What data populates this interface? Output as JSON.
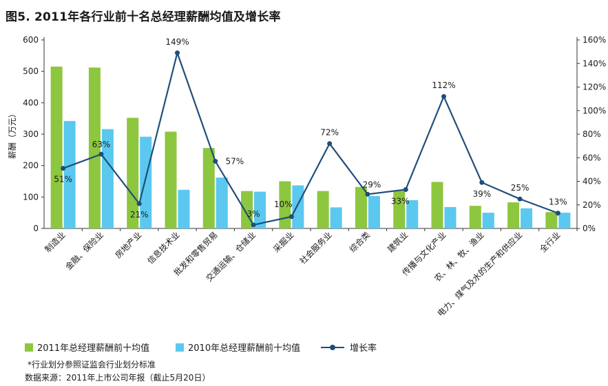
{
  "title": "图5. 2011年各行业前十名总经理薪酬均值及增长率",
  "colors": {
    "bar2011": "#8dc63f",
    "bar2010": "#5bc8f0",
    "line": "#1f4e79",
    "axis": "#333333"
  },
  "chart_data": {
    "type": "bar",
    "categories": [
      "制造业",
      "金融、保险业",
      "房地产业",
      "信息技术业",
      "批发和零售贸易",
      "交通运输、仓储业",
      "采掘业",
      "社会服务业",
      "综合类",
      "建筑业",
      "传播与文化产业",
      "农、林、牧、渔业",
      "电力、煤气及水的生产和供应业",
      "全行业"
    ],
    "series": [
      {
        "name": "2011年总经理薪酬前十均值",
        "axis": "left",
        "values": [
          515,
          512,
          352,
          308,
          256,
          119,
          150,
          119,
          132,
          120,
          148,
          72,
          83,
          52
        ]
      },
      {
        "name": "2010年总经理薪酬前十均值",
        "axis": "left",
        "values": [
          342,
          316,
          292,
          123,
          162,
          117,
          137,
          67,
          103,
          90,
          68,
          50,
          64,
          50
        ]
      },
      {
        "name": "增长率",
        "type": "line",
        "axis": "right",
        "values": [
          51,
          63,
          21,
          149,
          57,
          3,
          10,
          72,
          29,
          33,
          112,
          39,
          25,
          13
        ],
        "labels": [
          "51%",
          "63%",
          "21%",
          "149%",
          "57%",
          "3%",
          "10%",
          "72%",
          "29%",
          "33%",
          "112%",
          "39%",
          "25%",
          "13%"
        ]
      }
    ],
    "ylabel": "薪酬（万元）",
    "ylim": [
      0,
      600
    ],
    "yticks": [
      "0",
      "100",
      "200",
      "300",
      "400",
      "500",
      "600"
    ],
    "y2lim": [
      0,
      160
    ],
    "y2ticks": [
      "0%",
      "20%",
      "40%",
      "60%",
      "80%",
      "100%",
      "120%",
      "140%",
      "160%"
    ],
    "legend_position": "bottom-left"
  },
  "legend": {
    "s2011": "2011年总经理薪酬前十均值",
    "s2010": "2010年总经理薪酬前十均值",
    "growth": "增长率"
  },
  "footnotes": {
    "note": "*行业划分参照证监会行业划分标准",
    "source": "数据来源：2011年上市公司年报（截止5月20日）"
  }
}
